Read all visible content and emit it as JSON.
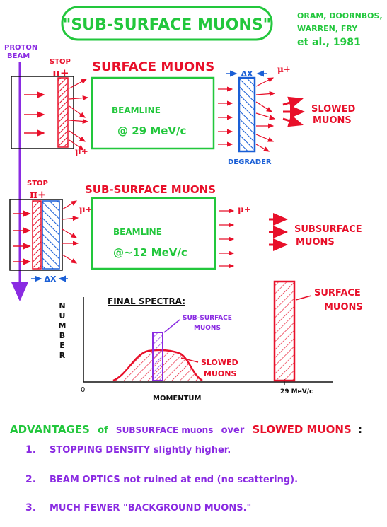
{
  "title": "\"SUB-SURFACE MUONS\"",
  "citation": {
    "line1": "ORAM, DOORNBOS,",
    "line2": "WARREN, FRY",
    "line3": "et al., 1981"
  },
  "panel_top": {
    "proton_beam": [
      "PROTON",
      "BEAM"
    ],
    "stop": "STOP",
    "pi_plus": "π+",
    "heading": "SURFACE MUONS",
    "beamline": "BEAMLINE",
    "momentum": "@ 29 MeV/c",
    "delta_x": "ΔX",
    "mu_plus": "μ+",
    "degrader": "DEGRADER",
    "slowed": [
      "SLOWED",
      "MUONS"
    ]
  },
  "panel_mid": {
    "stop": "STOP",
    "pi_plus": "π+",
    "heading": "SUB-SURFACE MUONS",
    "beamline": "BEAMLINE",
    "momentum": "@~12 MeV/c",
    "mu_plus": "μ+",
    "delta_x": "ΔX",
    "subsurface": [
      "SUBSURFACE",
      "MUONS"
    ]
  },
  "spectra": {
    "title": "FINAL SPECTRA:",
    "ylabel": [
      "N",
      "U",
      "M",
      "B",
      "E",
      "R"
    ],
    "origin": "0",
    "xlabel": "MOMENTUM",
    "tick": "29 MeV/c",
    "sub_surface_label": [
      "SUB-SURFACE",
      "MUONS"
    ],
    "slowed_label": [
      "SLOWED",
      "MUONS"
    ],
    "surface_label": [
      "SURFACE",
      "MUONS"
    ]
  },
  "advantages": {
    "p1": "ADVANTAGES",
    "p2": "of",
    "p3": "SUBSURFACE muons",
    "p4": "over",
    "p5": "SLOWED MUONS",
    "p6": ":",
    "items": [
      {
        "num": "1.",
        "text": "STOPPING DENSITY  slightly higher."
      },
      {
        "num": "2.",
        "text": "BEAM OPTICS not ruined at end (no scattering)."
      },
      {
        "num": "3.",
        "text": "MUCH FEWER \"BACKGROUND MUONS.\""
      }
    ]
  },
  "colors": {
    "red": "#e8102a",
    "green": "#22c73c",
    "blue": "#1a5fd6",
    "purple": "#8a2be2",
    "black": "#111111"
  }
}
